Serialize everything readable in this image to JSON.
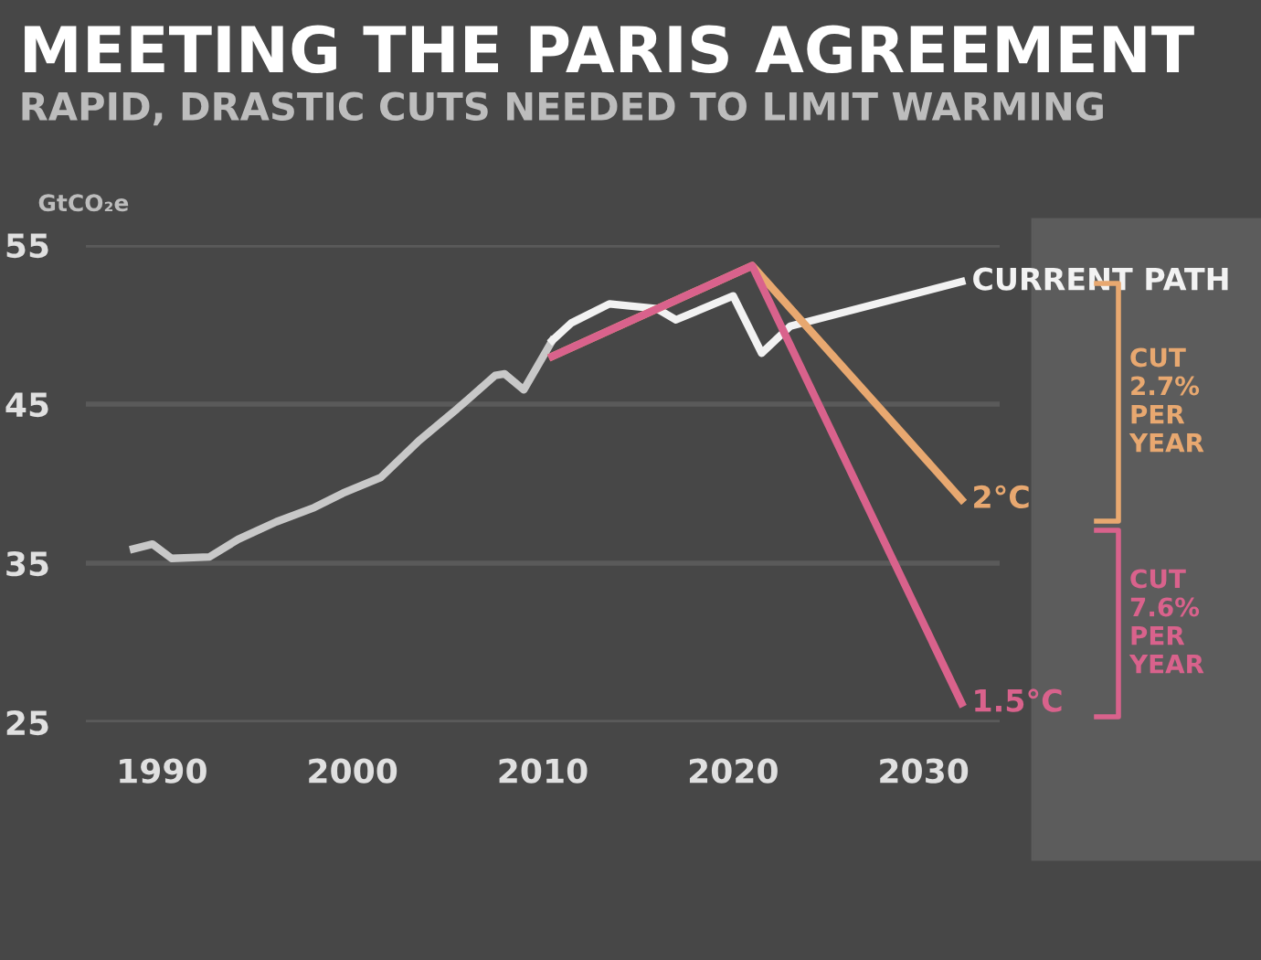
{
  "chart_data": {
    "type": "line",
    "title": "MEETING THE PARIS AGREEMENT",
    "subtitle": "RAPID, DRASTIC CUTS NEEDED TO LIMIT WARMING",
    "ylabel": "GtCO₂e",
    "series": [
      {
        "color": "#c8c8c8",
        "x": [
          1988.5,
          1989.5,
          1990.5,
          1992.5,
          1994,
          1996,
          1998,
          1999.5,
          2001.5,
          2003.5,
          2005.5,
          2007.5,
          2008,
          2009,
          2010.5
        ],
        "values": [
          35.9,
          36.2,
          35.3,
          35.4,
          36.5,
          37.6,
          38.5,
          39.4,
          40.4,
          42.7,
          44.7,
          46.8,
          46.9,
          45.9,
          49.0
        ]
      },
      {
        "name": "CURRENT PATH",
        "color": "#f2f2f2",
        "x": [
          2010.5,
          2011.5,
          2013.5,
          2016,
          2017,
          2020,
          2021.5,
          2023,
          2032
        ],
        "values": [
          49.0,
          50.1,
          51.3,
          51.0,
          50.3,
          51.8,
          48.2,
          49.9,
          52.7
        ]
      },
      {
        "name": "2°C",
        "color": "#e8a870",
        "x": [
          2010.5,
          2021,
          2032
        ],
        "values": [
          48.0,
          53.7,
          39.0
        ]
      },
      {
        "name": "1.5°C",
        "color": "#d9628c",
        "x": [
          2010.5,
          2021,
          2032
        ],
        "values": [
          48.0,
          53.7,
          26.2
        ]
      }
    ],
    "xlim": [
      1986,
      2034
    ],
    "xticks": [
      1990,
      2000,
      2010,
      2020,
      2030
    ],
    "ylim": [
      25,
      55
    ],
    "yticks": [
      25,
      35,
      45,
      55
    ],
    "grid": "y",
    "legend": false,
    "annotations": [
      "CUT 2.7% PER YEAR",
      "CUT 7.6% PER YEAR"
    ]
  }
}
